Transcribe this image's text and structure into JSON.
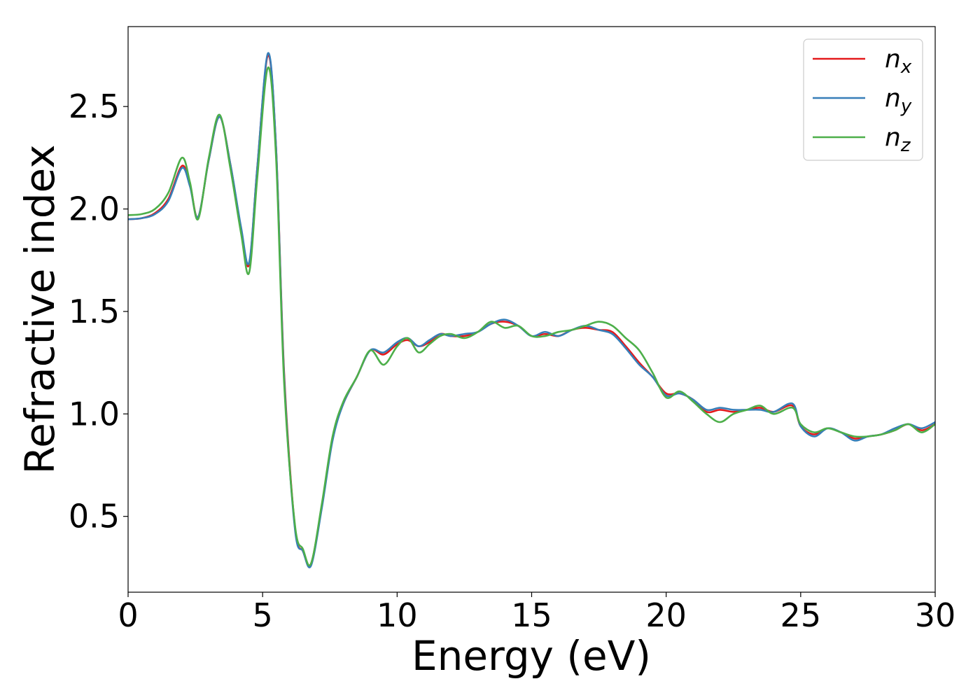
{
  "chart_data": {
    "type": "line",
    "title": "",
    "xlabel": "Energy (eV)",
    "ylabel": "Refractive index",
    "xlim": [
      0,
      30
    ],
    "ylim": [
      0.13,
      2.89
    ],
    "xticks": [
      0,
      5,
      10,
      15,
      20,
      25,
      30
    ],
    "xtick_labels": [
      "0",
      "5",
      "10",
      "15",
      "20",
      "25",
      "30"
    ],
    "yticks": [
      0.5,
      1.0,
      1.5,
      2.0,
      2.5
    ],
    "ytick_labels": [
      "0.5",
      "1.0",
      "1.5",
      "2.0",
      "2.5"
    ],
    "grid": false,
    "legend_position": "top-right",
    "series": [
      {
        "name": "n_x",
        "label_base": "n",
        "label_sub": "x",
        "color": "#e41a1c",
        "points": [
          [
            0,
            1.95
          ],
          [
            0.5,
            1.955
          ],
          [
            1.0,
            1.98
          ],
          [
            1.5,
            2.05
          ],
          [
            2.0,
            2.21
          ],
          [
            2.3,
            2.12
          ],
          [
            2.6,
            1.96
          ],
          [
            3.0,
            2.24
          ],
          [
            3.4,
            2.45
          ],
          [
            3.8,
            2.22
          ],
          [
            4.2,
            1.9
          ],
          [
            4.5,
            1.73
          ],
          [
            4.8,
            2.2
          ],
          [
            5.2,
            2.75
          ],
          [
            5.5,
            2.3
          ],
          [
            5.8,
            1.2
          ],
          [
            6.2,
            0.45
          ],
          [
            6.5,
            0.33
          ],
          [
            6.8,
            0.27
          ],
          [
            7.2,
            0.55
          ],
          [
            7.6,
            0.88
          ],
          [
            8.0,
            1.05
          ],
          [
            8.5,
            1.18
          ],
          [
            9.0,
            1.31
          ],
          [
            9.5,
            1.29
          ],
          [
            10.0,
            1.34
          ],
          [
            10.4,
            1.36
          ],
          [
            10.8,
            1.33
          ],
          [
            11.2,
            1.35
          ],
          [
            11.6,
            1.39
          ],
          [
            12.0,
            1.38
          ],
          [
            12.5,
            1.38
          ],
          [
            13.0,
            1.4
          ],
          [
            13.5,
            1.44
          ],
          [
            14.0,
            1.45
          ],
          [
            14.5,
            1.43
          ],
          [
            15.0,
            1.38
          ],
          [
            15.5,
            1.39
          ],
          [
            16.0,
            1.38
          ],
          [
            16.5,
            1.41
          ],
          [
            17.0,
            1.42
          ],
          [
            17.5,
            1.41
          ],
          [
            18.0,
            1.4
          ],
          [
            18.5,
            1.33
          ],
          [
            19.0,
            1.25
          ],
          [
            19.5,
            1.18
          ],
          [
            20.0,
            1.1
          ],
          [
            20.5,
            1.1
          ],
          [
            21.0,
            1.07
          ],
          [
            21.5,
            1.01
          ],
          [
            22.0,
            1.02
          ],
          [
            22.5,
            1.01
          ],
          [
            23.0,
            1.02
          ],
          [
            23.5,
            1.03
          ],
          [
            24.0,
            1.01
          ],
          [
            24.7,
            1.04
          ],
          [
            25.0,
            0.94
          ],
          [
            25.5,
            0.9
          ],
          [
            26.0,
            0.93
          ],
          [
            26.5,
            0.91
          ],
          [
            27.0,
            0.88
          ],
          [
            27.5,
            0.89
          ],
          [
            28.0,
            0.9
          ],
          [
            28.5,
            0.92
          ],
          [
            29.0,
            0.95
          ],
          [
            29.5,
            0.92
          ],
          [
            30.0,
            0.95
          ]
        ]
      },
      {
        "name": "n_y",
        "label_base": "n",
        "label_sub": "y",
        "color": "#377eb8",
        "points": [
          [
            0,
            1.95
          ],
          [
            0.5,
            1.955
          ],
          [
            1.0,
            1.975
          ],
          [
            1.5,
            2.04
          ],
          [
            2.0,
            2.2
          ],
          [
            2.3,
            2.11
          ],
          [
            2.6,
            1.96
          ],
          [
            3.0,
            2.24
          ],
          [
            3.4,
            2.45
          ],
          [
            3.8,
            2.22
          ],
          [
            4.2,
            1.91
          ],
          [
            4.5,
            1.74
          ],
          [
            4.8,
            2.2
          ],
          [
            5.2,
            2.76
          ],
          [
            5.5,
            2.3
          ],
          [
            5.8,
            1.18
          ],
          [
            6.2,
            0.44
          ],
          [
            6.5,
            0.33
          ],
          [
            6.8,
            0.26
          ],
          [
            7.2,
            0.54
          ],
          [
            7.6,
            0.87
          ],
          [
            8.0,
            1.05
          ],
          [
            8.5,
            1.18
          ],
          [
            9.0,
            1.31
          ],
          [
            9.5,
            1.3
          ],
          [
            10.0,
            1.35
          ],
          [
            10.4,
            1.37
          ],
          [
            10.8,
            1.33
          ],
          [
            11.2,
            1.36
          ],
          [
            11.6,
            1.39
          ],
          [
            12.0,
            1.38
          ],
          [
            12.5,
            1.39
          ],
          [
            13.0,
            1.4
          ],
          [
            13.5,
            1.44
          ],
          [
            14.0,
            1.46
          ],
          [
            14.5,
            1.43
          ],
          [
            15.0,
            1.38
          ],
          [
            15.5,
            1.4
          ],
          [
            16.0,
            1.38
          ],
          [
            16.5,
            1.41
          ],
          [
            17.0,
            1.43
          ],
          [
            17.5,
            1.41
          ],
          [
            18.0,
            1.39
          ],
          [
            18.5,
            1.32
          ],
          [
            19.0,
            1.24
          ],
          [
            19.5,
            1.18
          ],
          [
            20.0,
            1.09
          ],
          [
            20.5,
            1.1
          ],
          [
            21.0,
            1.07
          ],
          [
            21.5,
            1.02
          ],
          [
            22.0,
            1.03
          ],
          [
            22.5,
            1.02
          ],
          [
            23.0,
            1.02
          ],
          [
            23.5,
            1.02
          ],
          [
            24.0,
            1.01
          ],
          [
            24.7,
            1.05
          ],
          [
            25.0,
            0.94
          ],
          [
            25.5,
            0.89
          ],
          [
            26.0,
            0.93
          ],
          [
            26.5,
            0.91
          ],
          [
            27.0,
            0.87
          ],
          [
            27.5,
            0.89
          ],
          [
            28.0,
            0.9
          ],
          [
            28.5,
            0.93
          ],
          [
            29.0,
            0.95
          ],
          [
            29.5,
            0.93
          ],
          [
            30.0,
            0.96
          ]
        ]
      },
      {
        "name": "n_z",
        "label_base": "n",
        "label_sub": "z",
        "color": "#4daf4a",
        "points": [
          [
            0,
            1.97
          ],
          [
            0.5,
            1.975
          ],
          [
            1.0,
            2.0
          ],
          [
            1.5,
            2.08
          ],
          [
            2.0,
            2.25
          ],
          [
            2.3,
            2.13
          ],
          [
            2.6,
            1.95
          ],
          [
            3.0,
            2.25
          ],
          [
            3.4,
            2.46
          ],
          [
            3.8,
            2.2
          ],
          [
            4.2,
            1.88
          ],
          [
            4.5,
            1.69
          ],
          [
            4.8,
            2.15
          ],
          [
            5.2,
            2.69
          ],
          [
            5.5,
            2.25
          ],
          [
            5.8,
            1.15
          ],
          [
            6.2,
            0.46
          ],
          [
            6.5,
            0.34
          ],
          [
            6.8,
            0.27
          ],
          [
            7.2,
            0.56
          ],
          [
            7.6,
            0.89
          ],
          [
            8.0,
            1.06
          ],
          [
            8.5,
            1.18
          ],
          [
            9.0,
            1.31
          ],
          [
            9.5,
            1.24
          ],
          [
            10.0,
            1.33
          ],
          [
            10.4,
            1.37
          ],
          [
            10.8,
            1.3
          ],
          [
            11.2,
            1.34
          ],
          [
            11.6,
            1.38
          ],
          [
            12.0,
            1.39
          ],
          [
            12.5,
            1.37
          ],
          [
            13.0,
            1.4
          ],
          [
            13.5,
            1.45
          ],
          [
            14.0,
            1.42
          ],
          [
            14.5,
            1.43
          ],
          [
            15.0,
            1.38
          ],
          [
            15.5,
            1.38
          ],
          [
            16.0,
            1.4
          ],
          [
            16.5,
            1.41
          ],
          [
            17.0,
            1.43
          ],
          [
            17.5,
            1.45
          ],
          [
            18.0,
            1.43
          ],
          [
            18.5,
            1.37
          ],
          [
            19.0,
            1.31
          ],
          [
            19.5,
            1.2
          ],
          [
            20.0,
            1.08
          ],
          [
            20.5,
            1.11
          ],
          [
            21.0,
            1.06
          ],
          [
            21.5,
            1.0
          ],
          [
            22.0,
            0.96
          ],
          [
            22.5,
            1.0
          ],
          [
            23.0,
            1.02
          ],
          [
            23.5,
            1.04
          ],
          [
            24.0,
            1.0
          ],
          [
            24.7,
            1.03
          ],
          [
            25.0,
            0.95
          ],
          [
            25.5,
            0.91
          ],
          [
            26.0,
            0.93
          ],
          [
            26.5,
            0.91
          ],
          [
            27.0,
            0.89
          ],
          [
            27.5,
            0.89
          ],
          [
            28.0,
            0.9
          ],
          [
            28.5,
            0.92
          ],
          [
            29.0,
            0.95
          ],
          [
            29.5,
            0.91
          ],
          [
            30.0,
            0.95
          ]
        ]
      }
    ]
  }
}
